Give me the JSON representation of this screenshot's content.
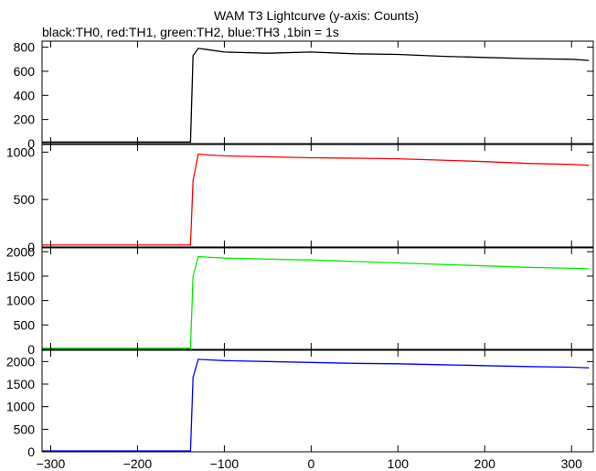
{
  "chart_data": {
    "type": "line",
    "title": "WAM T3 Lightcurve (y-axis: Counts)",
    "subtitle": "black:TH0, red:TH1, green:TH2, blue:TH3 ,1bin = 1s",
    "xlim": [
      -310,
      325
    ],
    "xticks": [
      -300,
      -200,
      -100,
      0,
      100,
      200,
      300
    ],
    "grid": false,
    "legend": "none",
    "x": [
      -310,
      -200,
      -140,
      -139,
      -136,
      -130,
      -120,
      -100,
      -50,
      0,
      50,
      100,
      150,
      200,
      250,
      300,
      320
    ],
    "panels": [
      {
        "name": "TH0",
        "color": "#000000",
        "ylim": [
          0,
          850
        ],
        "yticks": [
          0,
          200,
          400,
          600,
          800
        ],
        "values": [
          13,
          13,
          13,
          13,
          730,
          790,
          780,
          760,
          750,
          760,
          745,
          740,
          725,
          715,
          705,
          700,
          690
        ]
      },
      {
        "name": "TH1",
        "color": "#ff0000",
        "ylim": [
          0,
          1080
        ],
        "yticks": [
          0,
          500,
          1000
        ],
        "values": [
          20,
          20,
          20,
          20,
          700,
          980,
          970,
          960,
          950,
          940,
          935,
          930,
          915,
          900,
          880,
          870,
          860
        ]
      },
      {
        "name": "TH2",
        "color": "#00ee00",
        "ylim": [
          0,
          2080
        ],
        "yticks": [
          0,
          500,
          1000,
          1500,
          2000
        ],
        "values": [
          25,
          25,
          25,
          25,
          1500,
          1900,
          1890,
          1870,
          1850,
          1830,
          1800,
          1770,
          1740,
          1710,
          1680,
          1660,
          1650
        ]
      },
      {
        "name": "TH3",
        "color": "#0000ff",
        "ylim": [
          0,
          2250
        ],
        "yticks": [
          0,
          500,
          1000,
          1500,
          2000
        ],
        "values": [
          20,
          20,
          20,
          20,
          1650,
          2050,
          2040,
          2020,
          2000,
          1980,
          1960,
          1950,
          1930,
          1910,
          1890,
          1875,
          1860
        ]
      }
    ]
  }
}
